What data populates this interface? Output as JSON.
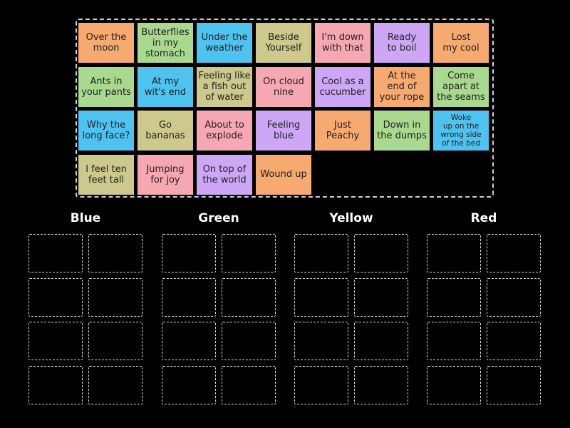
{
  "colors": {
    "orange": "#f6aa70",
    "green": "#a9d98f",
    "blue": "#4fc3ef",
    "olive": "#cdc98c",
    "pink": "#f6a8b2",
    "purple": "#cda7f6",
    "background": "#000000"
  },
  "cards": [
    {
      "text": "Over the\nmoon",
      "color": "orange"
    },
    {
      "text": "Butterflies\nin my\nstomach",
      "color": "green"
    },
    {
      "text": "Under the\nweather",
      "color": "blue"
    },
    {
      "text": "Beside\nYourself",
      "color": "olive"
    },
    {
      "text": "I'm down\nwith that",
      "color": "pink"
    },
    {
      "text": "Ready\nto boil",
      "color": "purple"
    },
    {
      "text": "Lost\nmy cool",
      "color": "orange"
    },
    {
      "text": "Ants in\nyour pants",
      "color": "green"
    },
    {
      "text": "At my\nwit's end",
      "color": "blue"
    },
    {
      "text": "Feeling like\na fish out\nof water",
      "color": "olive"
    },
    {
      "text": "On cloud\nnine",
      "color": "pink"
    },
    {
      "text": "Cool as a\ncucumber",
      "color": "purple"
    },
    {
      "text": "At the\nend of\nyour rope",
      "color": "orange"
    },
    {
      "text": "Come\napart at\nthe seams",
      "color": "green"
    },
    {
      "text": "Why the\nlong face?",
      "color": "blue"
    },
    {
      "text": "Go\nbananas",
      "color": "olive"
    },
    {
      "text": "About to\nexplode",
      "color": "pink"
    },
    {
      "text": "Feeling\nblue",
      "color": "purple"
    },
    {
      "text": "Just\nPeachy",
      "color": "orange"
    },
    {
      "text": "Down in\nthe dumps",
      "color": "green"
    },
    {
      "text": "Woke\nup on the\nwrong side\nof the bed",
      "color": "blue",
      "small": true
    },
    {
      "text": "I feel ten\nfeet tall",
      "color": "olive"
    },
    {
      "text": "Jumping\nfor joy",
      "color": "pink"
    },
    {
      "text": "On top of\nthe world",
      "color": "purple"
    },
    {
      "text": "Wound up",
      "color": "orange"
    }
  ],
  "groups": [
    {
      "title": "Blue"
    },
    {
      "title": "Green"
    },
    {
      "title": "Yellow"
    },
    {
      "title": "Red"
    }
  ]
}
